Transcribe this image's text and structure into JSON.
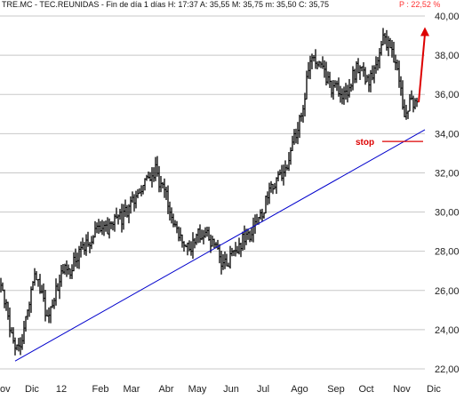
{
  "header": {
    "text": "TRE.MC - TEC.REUNIDAS - Fin de día 1 días  H: 17:37  A: 35,55  M: 35,75  m: 35,50  C: 35,75",
    "extra": "P : 22,52 %"
  },
  "colors": {
    "bars": "#000000",
    "trendline": "#0000cc",
    "annotation": "#dd0000",
    "grid": "#c8c8c8",
    "header_red": "#ff3030",
    "background": "#ffffff"
  },
  "chart_data": {
    "type": "ohlc",
    "title": "",
    "xlabel": "",
    "ylabel": "",
    "ylim": [
      22,
      40
    ],
    "y_ticks": [
      "22,00",
      "24,00",
      "26,00",
      "28,00",
      "30,00",
      "32,00",
      "34,00",
      "36,00",
      "38,00",
      "40,00"
    ],
    "x_ticks": [
      "ov",
      "Dic",
      "12",
      "Feb",
      "Mar",
      "Abr",
      "May",
      "Jun",
      "Jul",
      "Ago",
      "Sep",
      "Oct",
      "Nov",
      "Dic"
    ],
    "grid": "horizontal",
    "series": [
      {
        "approx_closes": [
          26.3,
          24.8,
          22.8,
          23.5,
          25.0,
          26.6,
          26.0,
          24.4,
          25.8,
          27.0,
          26.9,
          27.6,
          28.3,
          28.5,
          29.0,
          29.4,
          29.2,
          29.8,
          29.6,
          30.3,
          30.8,
          31.4,
          31.7,
          32.1,
          31.2,
          30.4,
          29.3,
          28.6,
          28.1,
          28.7,
          29.0,
          28.6,
          28.0,
          27.3,
          27.5,
          28.1,
          28.6,
          28.9,
          29.6,
          30.0,
          31.2,
          31.6,
          31.7,
          32.8,
          34.2,
          35.5,
          37.9,
          37.6,
          37.1,
          36.3,
          36.2,
          35.8,
          36.6,
          37.4,
          36.9,
          36.8,
          37.9,
          38.9,
          38.3,
          36.9,
          35.1,
          35.6,
          35.75
        ]
      }
    ],
    "trendline": {
      "start": [
        "Nov",
        22.4
      ],
      "end": [
        "Dic",
        34.2
      ]
    },
    "annotations": [
      {
        "label": "stop",
        "value": 33.6
      },
      {
        "label": "up-arrow",
        "from": 35.6,
        "to": 39.3
      }
    ]
  }
}
